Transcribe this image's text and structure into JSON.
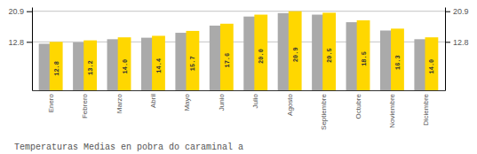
{
  "chart_data": {
    "type": "bar",
    "title": "Temperaturas Medias en pobra do caraminal a",
    "categories": [
      "Enero",
      "Febrero",
      "Marzo",
      "Abril",
      "Mayo",
      "Junio",
      "Julio",
      "Agosto",
      "Septiembre",
      "Octubre",
      "Noviembre",
      "Diciembre"
    ],
    "series": [
      {
        "color": "#AAAAAA",
        "values": [
          12.3,
          12.7,
          13.5,
          13.9,
          15.2,
          17.1,
          19.5,
          20.4,
          20.0,
          18.0,
          15.8,
          13.5
        ]
      },
      {
        "color": "#FFD700",
        "values": [
          12.8,
          13.2,
          14.0,
          14.4,
          15.7,
          17.6,
          20.0,
          20.9,
          20.5,
          18.5,
          16.3,
          14.0
        ],
        "value_labels": [
          "12.8",
          "13.2",
          "14.0",
          "14.4",
          "15.7",
          "17.6",
          "20.0",
          "20.9",
          "20.5",
          "18.5",
          "16.3",
          "14.0"
        ],
        "data_labels": true
      }
    ],
    "ylim": [
      0,
      22.0
    ],
    "yticks": [
      12.8,
      20.9
    ],
    "grid": true
  }
}
